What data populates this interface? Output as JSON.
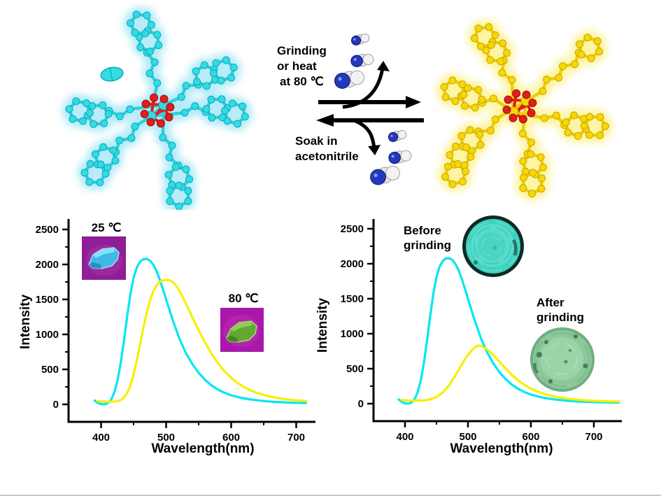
{
  "scheme": {
    "forward_lines": [
      "Grinding",
      "or heat",
      "at 80 ℃"
    ],
    "reverse_lines": [
      "Soak in",
      "acetonitrile"
    ]
  },
  "colors": {
    "curve_cyan": "#00e7f0",
    "curve_yellow": "#f7ef00",
    "axis": "#000000",
    "cyan_molecule": "#33dbe3",
    "cyan_molecule_glow": "#ace9f7",
    "yellow_molecule": "#f6d707",
    "yellow_molecule_glow": "#fdf294",
    "oxygen_red": "#e31c1c",
    "nitrogen_blue": "#2438bd",
    "photo_magenta_bg": "#9c1f9e",
    "powder_cyan": "#45d6c4",
    "powder_green": "#92cb9e"
  },
  "chart_data": [
    {
      "type": "line",
      "title": "",
      "xlabel": "Wavelength(nm)",
      "ylabel": "Intensity",
      "xlim": [
        350,
        730
      ],
      "ylim": [
        0,
        2500
      ],
      "x_ticks": [
        400,
        500,
        600,
        700
      ],
      "x_minor_ticks": [
        450,
        550,
        650
      ],
      "y_ticks": [
        0,
        500,
        1000,
        1500,
        2000,
        2500
      ],
      "y_minor_ticks": [
        250,
        750,
        1250,
        1750,
        2250
      ],
      "grid": false,
      "legend_position": "none",
      "annotations": [
        {
          "lines": [
            "25 ℃"
          ],
          "photo": "blue-crystal-under-uv"
        },
        {
          "lines": [
            "80 ℃"
          ],
          "photo": "green-crystal-under-uv"
        }
      ],
      "series": [
        {
          "name": "25 ℃",
          "color": "#00e7f0",
          "peak": {
            "x": 470,
            "y": 2080
          },
          "x": [
            390,
            395,
            400,
            405,
            410,
            415,
            420,
            425,
            430,
            435,
            440,
            445,
            450,
            455,
            460,
            465,
            470,
            475,
            480,
            485,
            490,
            495,
            500,
            510,
            520,
            530,
            540,
            550,
            560,
            570,
            580,
            590,
            600,
            610,
            620,
            630,
            640,
            650,
            660,
            670,
            680,
            690,
            700,
            710,
            715
          ],
          "y": [
            55,
            20,
            5,
            0,
            15,
            60,
            160,
            330,
            580,
            900,
            1250,
            1570,
            1810,
            1960,
            2040,
            2075,
            2080,
            2055,
            2000,
            1910,
            1790,
            1650,
            1500,
            1210,
            950,
            740,
            580,
            450,
            350,
            270,
            210,
            165,
            130,
            105,
            85,
            70,
            58,
            48,
            40,
            34,
            29,
            25,
            22,
            20,
            18
          ]
        },
        {
          "name": "80 ℃",
          "color": "#f7ef00",
          "peak": {
            "x": 505,
            "y": 1780
          },
          "x": [
            395,
            400,
            405,
            410,
            415,
            420,
            425,
            430,
            435,
            440,
            445,
            450,
            455,
            460,
            465,
            470,
            475,
            480,
            485,
            490,
            495,
            500,
            505,
            510,
            515,
            520,
            530,
            540,
            550,
            560,
            570,
            580,
            590,
            600,
            610,
            620,
            630,
            640,
            650,
            660,
            670,
            680,
            690,
            700,
            710,
            715
          ],
          "y": [
            45,
            42,
            40,
            38,
            38,
            40,
            45,
            60,
            95,
            160,
            270,
            430,
            630,
            860,
            1090,
            1300,
            1480,
            1610,
            1700,
            1750,
            1772,
            1780,
            1775,
            1750,
            1700,
            1630,
            1450,
            1250,
            1060,
            880,
            720,
            585,
            470,
            380,
            305,
            245,
            200,
            162,
            133,
            110,
            92,
            78,
            67,
            58,
            52,
            48
          ]
        }
      ]
    },
    {
      "type": "line",
      "title": "",
      "xlabel": "Wavelength(nm)",
      "ylabel": "Intensity",
      "xlim": [
        350,
        745
      ],
      "ylim": [
        0,
        2500
      ],
      "x_ticks": [
        400,
        500,
        600,
        700
      ],
      "x_minor_ticks": [
        450,
        550,
        650
      ],
      "y_ticks": [
        0,
        500,
        1000,
        1500,
        2000,
        2500
      ],
      "y_minor_ticks": [
        250,
        750,
        1250,
        1750,
        2250
      ],
      "grid": false,
      "legend_position": "none",
      "annotations": [
        {
          "lines": [
            "Before",
            "grinding"
          ],
          "photo": "cyan-powder-disk"
        },
        {
          "lines": [
            "After",
            "grinding"
          ],
          "photo": "green-powder-disk"
        }
      ],
      "series": [
        {
          "name": "Before grinding",
          "color": "#00e7f0",
          "peak": {
            "x": 470,
            "y": 2080
          },
          "x": [
            390,
            395,
            400,
            405,
            410,
            415,
            420,
            425,
            430,
            435,
            440,
            445,
            450,
            455,
            460,
            465,
            470,
            475,
            480,
            485,
            490,
            495,
            500,
            510,
            520,
            530,
            540,
            550,
            560,
            570,
            580,
            590,
            600,
            610,
            620,
            630,
            640,
            650,
            660,
            670,
            680,
            690,
            700,
            710,
            720,
            730,
            740
          ],
          "y": [
            60,
            25,
            5,
            0,
            15,
            60,
            160,
            330,
            580,
            900,
            1250,
            1570,
            1810,
            1960,
            2040,
            2075,
            2080,
            2055,
            2000,
            1910,
            1790,
            1650,
            1500,
            1210,
            950,
            740,
            580,
            450,
            350,
            270,
            210,
            165,
            130,
            105,
            85,
            70,
            58,
            48,
            40,
            34,
            29,
            25,
            22,
            20,
            18,
            16,
            15
          ]
        },
        {
          "name": "After grinding",
          "color": "#f7ef00",
          "peak": {
            "x": 515,
            "y": 830
          },
          "x": [
            395,
            400,
            410,
            420,
            430,
            440,
            450,
            460,
            470,
            480,
            490,
            500,
            510,
            515,
            520,
            530,
            540,
            550,
            560,
            570,
            580,
            590,
            600,
            610,
            620,
            630,
            640,
            650,
            660,
            670,
            680,
            690,
            700,
            710,
            720,
            730,
            740
          ],
          "y": [
            50,
            48,
            44,
            42,
            45,
            60,
            95,
            160,
            260,
            400,
            560,
            700,
            800,
            830,
            825,
            780,
            700,
            600,
            500,
            410,
            330,
            265,
            215,
            175,
            143,
            118,
            98,
            82,
            70,
            60,
            52,
            46,
            41,
            37,
            34,
            31,
            29
          ]
        }
      ]
    }
  ]
}
